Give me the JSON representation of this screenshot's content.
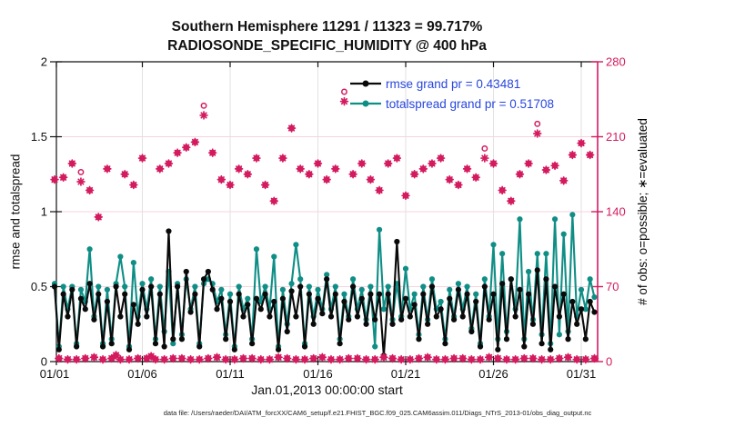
{
  "title": {
    "line1": "Southern Hemisphere 11291 / 11323 = 99.717%",
    "line2": "RADIOSONDE_SPECIFIC_HUMIDITY @ 400 hPa"
  },
  "legend": {
    "text_color": "#2746df",
    "items": [
      {
        "label": "rmse grand pr = 0.43481",
        "color": "#0a0a0a"
      },
      {
        "label": "totalspread grand pr = 0.51708",
        "color": "#0f8e86"
      }
    ]
  },
  "axes": {
    "y_left": {
      "label": "rmse and totalspread",
      "ticks": [
        "0",
        "0.5",
        "1",
        "1.5",
        "2"
      ],
      "lim": [
        0,
        2
      ],
      "color": "#111111"
    },
    "y_right": {
      "label": "# of obs: o=possible; ∗=evaluated",
      "ticks": [
        "0",
        "70",
        "140",
        "210",
        "280"
      ],
      "lim": [
        0,
        280
      ],
      "color": "#d41b5f"
    },
    "x": {
      "label": "Jan.01,2013 00:00:00 start",
      "ticks": [
        "01/01",
        "01/06",
        "01/11",
        "01/16",
        "01/21",
        "01/26",
        "01/31"
      ],
      "tick_days": [
        0,
        5,
        10,
        15,
        20,
        25,
        30
      ]
    }
  },
  "footer": "data file: /Users/raeder/DAI/ATM_forcXX/CAM6_setup/f.e21.FHIST_BGC.f09_025.CAM6assim.011/Diags_NTrS_2013-01/obs_diag_output.nc",
  "colors": {
    "rmse": "#0a0a0a",
    "totalspread": "#0f8e86",
    "obs": "#d41b5f",
    "grid_horizontal": "#f6d3df",
    "grid_vertical": "#e2e2e2",
    "spine": "#111111"
  },
  "chart_data": {
    "type": "line",
    "title": "Southern Hemisphere 11291 / 11323 = 99.717%",
    "subtitle": "RADIOSONDE_SPECIFIC_HUMIDITY @ 400 hPa",
    "xlabel": "Jan.01,2013 00:00:00 start",
    "ylabel_left": "rmse and totalspread",
    "ylabel_right": "# of obs: o=possible; ∗=evaluated",
    "time_step_days": 0.25,
    "start_day": 0,
    "ylim_left": [
      0,
      2
    ],
    "ylim_right": [
      0,
      280
    ],
    "grid": {
      "horizontal_at": [
        0.5,
        1,
        1.5
      ],
      "vertical_at_days": [
        5,
        10,
        15,
        20,
        25,
        30
      ]
    },
    "series": [
      {
        "name": "rmse",
        "color": "#0a0a0a",
        "grand_pr": 0.43481,
        "values": [
          0.5,
          0.08,
          0.45,
          0.3,
          0.48,
          0.1,
          0.42,
          0.35,
          0.52,
          0.28,
          0.45,
          0.1,
          0.4,
          0.12,
          0.5,
          0.3,
          0.45,
          0.08,
          0.38,
          0.25,
          0.48,
          0.3,
          0.5,
          0.12,
          0.45,
          0.1,
          0.87,
          0.15,
          0.5,
          0.15,
          0.6,
          0.33,
          0.45,
          0.1,
          0.55,
          0.6,
          0.48,
          0.35,
          0.42,
          0.15,
          0.4,
          0.08,
          0.45,
          0.3,
          0.38,
          0.12,
          0.42,
          0.35,
          0.45,
          0.3,
          0.4,
          0.08,
          0.42,
          0.2,
          0.47,
          0.3,
          0.5,
          0.1,
          0.45,
          0.25,
          0.42,
          0.32,
          0.55,
          0.3,
          0.45,
          0.12,
          0.4,
          0.28,
          0.5,
          0.3,
          0.42,
          0.25,
          0.45,
          0.28,
          0.45,
          0.04,
          0.45,
          0.25,
          0.8,
          0.28,
          0.42,
          0.3,
          0.38,
          0.15,
          0.45,
          0.25,
          0.5,
          0.3,
          0.35,
          0.12,
          0.42,
          0.28,
          0.48,
          0.3,
          0.45,
          0.2,
          0.4,
          0.1,
          0.5,
          0.28,
          0.45,
          0.08,
          0.52,
          0.15,
          0.55,
          0.3,
          0.48,
          0.1,
          0.45,
          0.25,
          0.61,
          0.12,
          0.55,
          0.08,
          0.5,
          0.3,
          0.45,
          0.15,
          0.4,
          0.25,
          0.35,
          0.15,
          0.4,
          0.33
        ]
      },
      {
        "name": "totalspread",
        "color": "#0f8e86",
        "grand_pr": 0.51708,
        "values": [
          0.52,
          0.1,
          0.5,
          0.35,
          0.5,
          0.12,
          0.48,
          0.4,
          0.75,
          0.3,
          0.5,
          0.12,
          0.48,
          0.15,
          0.52,
          0.7,
          0.5,
          0.1,
          0.66,
          0.3,
          0.52,
          0.35,
          0.55,
          0.15,
          0.5,
          0.2,
          0.6,
          0.12,
          0.52,
          0.18,
          0.55,
          0.35,
          0.5,
          0.12,
          0.52,
          0.55,
          0.52,
          0.4,
          0.48,
          0.18,
          0.45,
          0.1,
          0.5,
          0.35,
          0.42,
          0.15,
          0.75,
          0.4,
          0.5,
          0.35,
          0.7,
          0.1,
          0.48,
          0.25,
          0.52,
          0.78,
          0.55,
          0.12,
          0.5,
          0.3,
          0.48,
          0.35,
          0.58,
          0.35,
          0.5,
          0.15,
          0.45,
          0.3,
          0.55,
          0.35,
          0.48,
          0.28,
          0.5,
          0.1,
          0.88,
          0.35,
          0.5,
          0.28,
          0.52,
          0.3,
          0.62,
          0.35,
          0.45,
          0.18,
          0.5,
          0.28,
          0.55,
          0.35,
          0.4,
          0.15,
          0.48,
          0.3,
          0.52,
          0.35,
          0.5,
          0.22,
          0.45,
          0.12,
          0.55,
          0.3,
          0.78,
          0.15,
          0.72,
          0.2,
          0.55,
          0.35,
          0.95,
          0.15,
          0.6,
          0.28,
          0.72,
          0.18,
          0.72,
          0.12,
          0.95,
          0.18,
          0.85,
          0.2,
          0.98,
          0.3,
          0.48,
          0.35,
          0.55,
          0.43
        ]
      }
    ],
    "obs_counts": {
      "name": "# of obs",
      "axis": "right",
      "color": "#d41b5f",
      "evaluated": [
        170,
        3,
        172,
        2,
        185,
        2,
        168,
        3,
        160,
        4,
        135,
        2,
        180,
        3,
        6,
        2,
        175,
        2,
        165,
        3,
        190,
        3,
        5,
        2,
        180,
        2,
        185,
        3,
        195,
        3,
        200,
        2,
        205,
        2,
        230,
        3,
        195,
        4,
        170,
        2,
        165,
        2,
        180,
        3,
        175,
        3,
        190,
        2,
        165,
        2,
        150,
        4,
        190,
        3,
        218,
        2,
        180,
        2,
        175,
        3,
        185,
        4,
        170,
        2,
        180,
        2,
        243,
        3,
        175,
        3,
        185,
        2,
        170,
        2,
        160,
        4,
        185,
        3,
        190,
        2,
        155,
        2,
        175,
        3,
        180,
        4,
        185,
        2,
        190,
        2,
        170,
        3,
        165,
        3,
        180,
        2,
        172,
        2,
        190,
        4,
        185,
        3,
        160,
        2,
        150,
        2,
        175,
        3,
        185,
        3,
        213,
        2,
        179,
        2,
        183,
        3,
        169,
        4,
        193,
        2,
        204,
        2,
        193,
        3
      ],
      "possible_extra": {
        "indices": [
          6,
          34,
          66,
          98,
          110
        ],
        "delta": 9
      }
    }
  }
}
